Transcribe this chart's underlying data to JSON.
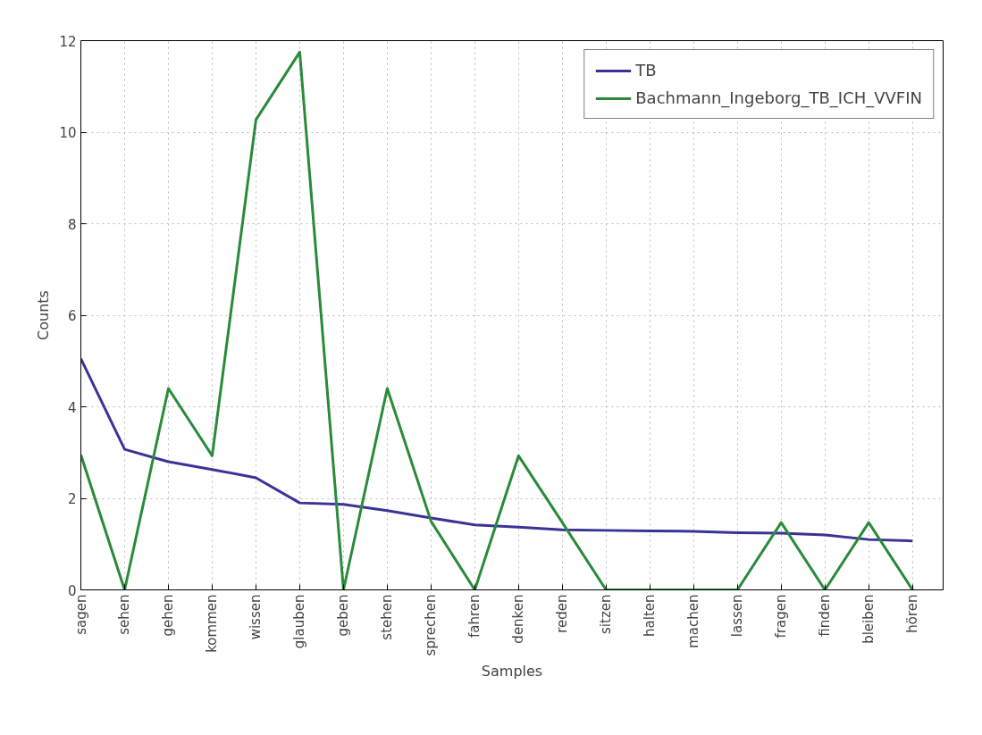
{
  "chart_data": {
    "type": "line",
    "xlabel": "Samples",
    "ylabel": "Counts",
    "categories": [
      "sagen",
      "sehen",
      "gehen",
      "kommen",
      "wissen",
      "glauben",
      "geben",
      "stehen",
      "sprechen",
      "fahren",
      "denken",
      "reden",
      "sitzen",
      "halten",
      "machen",
      "lassen",
      "fragen",
      "finden",
      "bleiben",
      "hören"
    ],
    "series": [
      {
        "name": "TB",
        "color": "#3a3396",
        "values": [
          5.05,
          3.07,
          2.8,
          2.63,
          2.45,
          1.9,
          1.87,
          1.73,
          1.57,
          1.42,
          1.37,
          1.31,
          1.3,
          1.29,
          1.28,
          1.25,
          1.24,
          1.2,
          1.1,
          1.07
        ]
      },
      {
        "name": "Bachmann_Ingeborg_TB_ICH_VVFIN",
        "color": "#2a8a3a",
        "values": [
          2.95,
          0,
          4.4,
          2.93,
          10.27,
          11.75,
          0,
          4.4,
          1.5,
          0,
          2.93,
          1.47,
          0,
          0,
          0,
          0,
          1.47,
          0,
          1.47,
          0
        ]
      }
    ],
    "ylim": [
      0,
      12
    ],
    "yticks": [
      0,
      2,
      4,
      6,
      8,
      10,
      12
    ],
    "grid": true,
    "legend": "top right",
    "line_style": "solid",
    "marker": "none"
  }
}
